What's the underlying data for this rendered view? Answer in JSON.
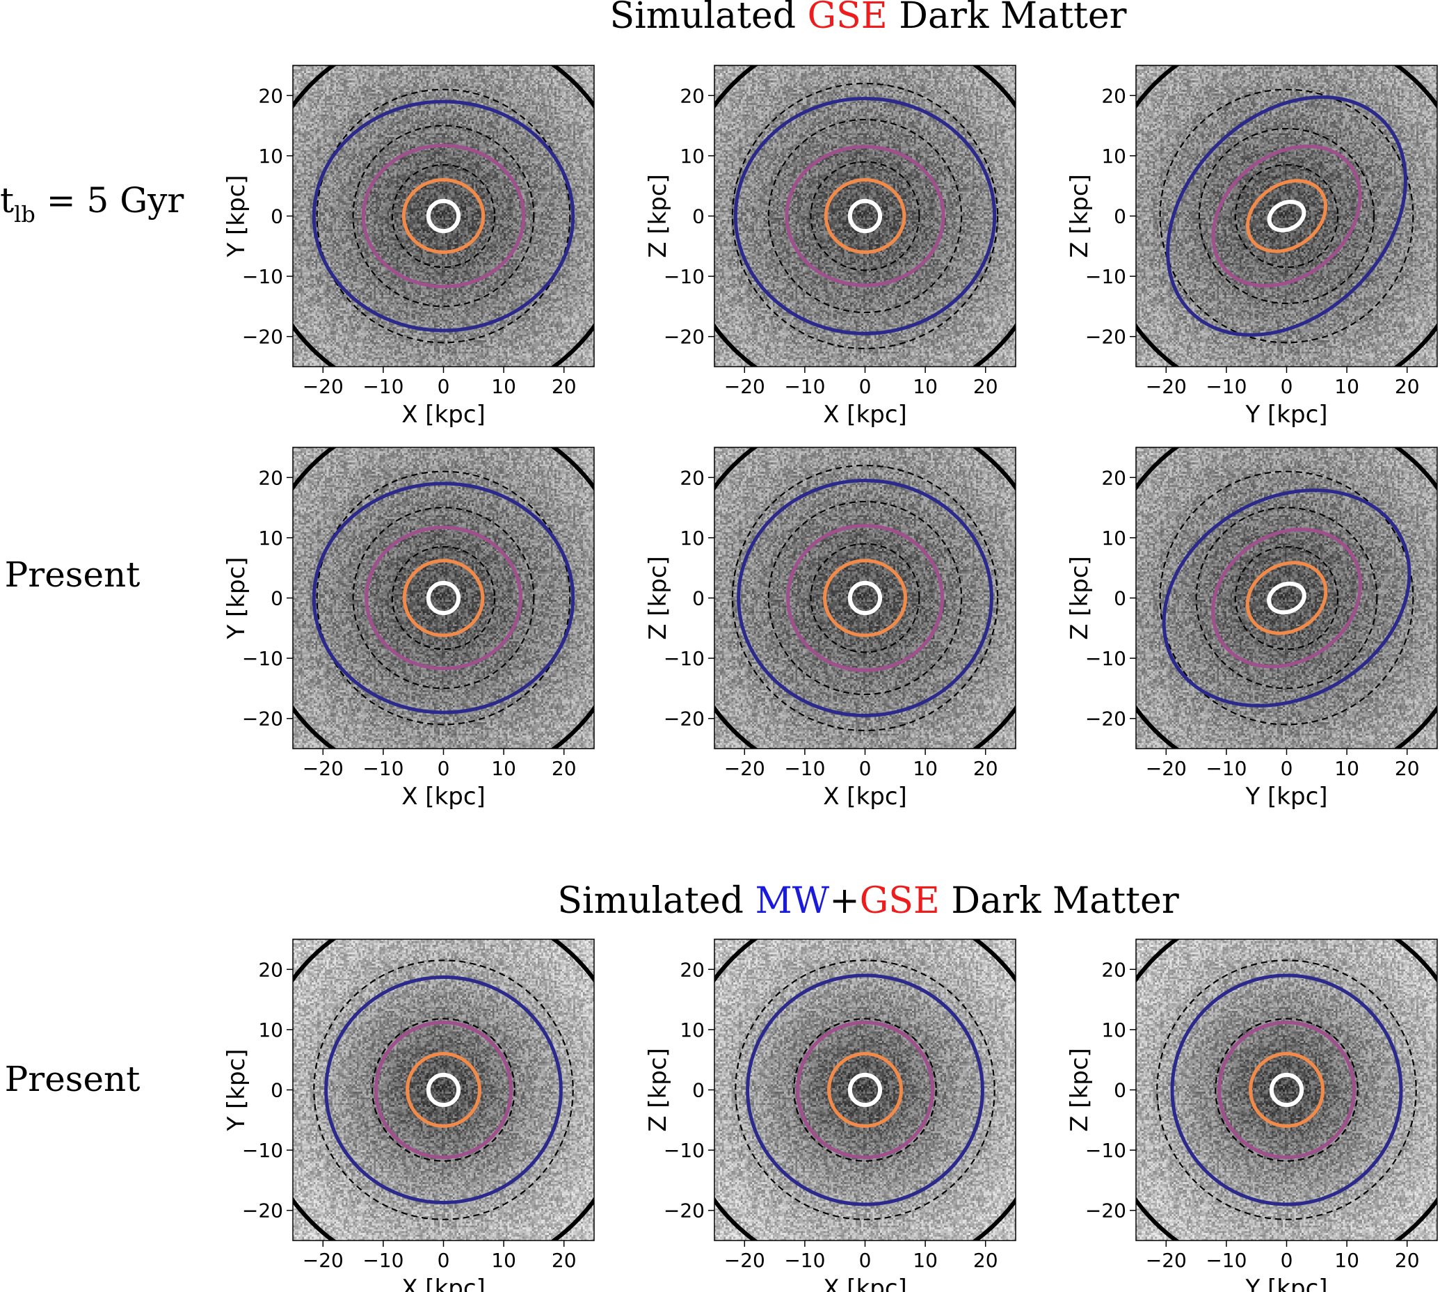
{
  "figure": {
    "top_title": {
      "prefix": "Simulated ",
      "highlight": "GSE",
      "suffix": " Dark Matter"
    },
    "bottom_title": {
      "prefix": "Simulated ",
      "highlight1": "MW",
      "plus": "+",
      "highlight2": "GSE",
      "suffix": " Dark Matter"
    },
    "colors": {
      "gse": "#ee1c1c",
      "mw": "#1a1adc",
      "blue": "#2b2a8c",
      "purple": "#a0508c",
      "orange": "#f28a4a",
      "white": "#ffffff",
      "dashed": "#000000"
    },
    "row_labels": [
      {
        "t": "t",
        "sub": "lb",
        "rest": " = 5 Gyr"
      },
      {
        "text": "Present"
      },
      {
        "text": "Present"
      }
    ]
  },
  "chart_data": [
    {
      "type": "heatmap",
      "panel": "gse-5gyr-xy",
      "xlabel": "X [kpc]",
      "ylabel": "Y [kpc]",
      "xlim": [
        -25,
        25
      ],
      "ylim": [
        -25,
        25
      ],
      "xticks": [
        -20,
        -10,
        0,
        10,
        20
      ],
      "yticks": [
        -20,
        -10,
        0,
        10,
        20
      ],
      "ellipses": [
        {
          "name": "white",
          "a": 2.5,
          "b": 2.5,
          "angle": 0
        },
        {
          "name": "orange",
          "a": 6.6,
          "b": 6.0,
          "angle": 0
        },
        {
          "name": "purple",
          "a": 13.3,
          "b": 11.7,
          "angle": 0
        },
        {
          "name": "blue",
          "a": 21.5,
          "b": 19.0,
          "angle": 0
        }
      ],
      "dashed_circles": [
        8.5,
        15.0,
        21.0
      ],
      "thick_circle": 31.0
    },
    {
      "type": "heatmap",
      "panel": "gse-5gyr-xz",
      "xlabel": "X [kpc]",
      "ylabel": "Z [kpc]",
      "xlim": [
        -25,
        25
      ],
      "ylim": [
        -25,
        25
      ],
      "xticks": [
        -20,
        -10,
        0,
        10,
        20
      ],
      "yticks": [
        -20,
        -10,
        0,
        10,
        20
      ],
      "ellipses": [
        {
          "name": "white",
          "a": 2.5,
          "b": 2.5,
          "angle": 0
        },
        {
          "name": "orange",
          "a": 6.5,
          "b": 6.0,
          "angle": 0
        },
        {
          "name": "purple",
          "a": 13.0,
          "b": 11.5,
          "angle": 0
        },
        {
          "name": "blue",
          "a": 21.5,
          "b": 19.5,
          "angle": 0
        }
      ],
      "dashed_circles": [
        9.0,
        16.0,
        22.0
      ],
      "thick_circle": 31.0
    },
    {
      "type": "heatmap",
      "panel": "gse-5gyr-yz",
      "xlabel": "Y [kpc]",
      "ylabel": "Z [kpc]",
      "xlim": [
        -25,
        25
      ],
      "ylim": [
        -25,
        25
      ],
      "xticks": [
        -20,
        -10,
        0,
        10,
        20
      ],
      "yticks": [
        -20,
        -10,
        0,
        10,
        20
      ],
      "ellipses": [
        {
          "name": "white",
          "a": 3.0,
          "b": 2.2,
          "angle": -25
        },
        {
          "name": "orange",
          "a": 7.0,
          "b": 5.2,
          "angle": -35
        },
        {
          "name": "purple",
          "a": 13.5,
          "b": 10.0,
          "angle": -40
        },
        {
          "name": "blue",
          "a": 22.5,
          "b": 16.5,
          "angle": -45
        }
      ],
      "dashed_circles": [
        8.5,
        14.5,
        21.0
      ],
      "thick_circle": 31.0
    },
    {
      "type": "heatmap",
      "panel": "gse-present-xy",
      "xlabel": "X [kpc]",
      "ylabel": "Y [kpc]",
      "xlim": [
        -25,
        25
      ],
      "ylim": [
        -25,
        25
      ],
      "xticks": [
        -20,
        -10,
        0,
        10,
        20
      ],
      "yticks": [
        -20,
        -10,
        0,
        10,
        20
      ],
      "ellipses": [
        {
          "name": "white",
          "a": 2.5,
          "b": 2.5,
          "angle": 0
        },
        {
          "name": "orange",
          "a": 6.5,
          "b": 6.2,
          "angle": 0
        },
        {
          "name": "purple",
          "a": 12.8,
          "b": 11.7,
          "angle": 0
        },
        {
          "name": "blue",
          "a": 21.5,
          "b": 19.0,
          "angle": 0
        }
      ],
      "dashed_circles": [
        8.5,
        15.0,
        21.0
      ],
      "thick_circle": 31.0
    },
    {
      "type": "heatmap",
      "panel": "gse-present-xz",
      "xlabel": "X [kpc]",
      "ylabel": "Z [kpc]",
      "xlim": [
        -25,
        25
      ],
      "ylim": [
        -25,
        25
      ],
      "xticks": [
        -20,
        -10,
        0,
        10,
        20
      ],
      "yticks": [
        -20,
        -10,
        0,
        10,
        20
      ],
      "ellipses": [
        {
          "name": "white",
          "a": 2.5,
          "b": 2.5,
          "angle": 0
        },
        {
          "name": "orange",
          "a": 6.7,
          "b": 6.2,
          "angle": 0
        },
        {
          "name": "purple",
          "a": 12.8,
          "b": 12.0,
          "angle": 0
        },
        {
          "name": "blue",
          "a": 21.0,
          "b": 19.5,
          "angle": 0
        }
      ],
      "dashed_circles": [
        9.0,
        16.0,
        22.0
      ],
      "thick_circle": 31.0
    },
    {
      "type": "heatmap",
      "panel": "gse-present-yz",
      "xlabel": "Y [kpc]",
      "ylabel": "Z [kpc]",
      "xlim": [
        -25,
        25
      ],
      "ylim": [
        -25,
        25
      ],
      "xticks": [
        -20,
        -10,
        0,
        10,
        20
      ],
      "yticks": [
        -20,
        -10,
        0,
        10,
        20
      ],
      "ellipses": [
        {
          "name": "white",
          "a": 3.0,
          "b": 2.3,
          "angle": -20
        },
        {
          "name": "orange",
          "a": 6.8,
          "b": 5.5,
          "angle": -30
        },
        {
          "name": "purple",
          "a": 13.0,
          "b": 10.5,
          "angle": -35
        },
        {
          "name": "blue",
          "a": 21.5,
          "b": 16.5,
          "angle": -30
        }
      ],
      "dashed_circles": [
        8.5,
        15.0,
        21.0
      ],
      "thick_circle": 31.0
    },
    {
      "type": "heatmap",
      "panel": "mwgse-present-xy",
      "xlabel": "X [kpc]",
      "ylabel": "Y [kpc]",
      "xlim": [
        -25,
        25
      ],
      "ylim": [
        -25,
        25
      ],
      "xticks": [
        -20,
        -10,
        0,
        10,
        20
      ],
      "yticks": [
        -20,
        -10,
        0,
        10,
        20
      ],
      "ellipses": [
        {
          "name": "white",
          "a": 2.5,
          "b": 2.5,
          "angle": 0
        },
        {
          "name": "orange",
          "a": 6.0,
          "b": 6.0,
          "angle": 0
        },
        {
          "name": "purple",
          "a": 11.2,
          "b": 11.2,
          "angle": 0
        },
        {
          "name": "blue",
          "a": 19.5,
          "b": 18.7,
          "angle": 0
        }
      ],
      "dashed_circles": [
        11.8,
        21.5
      ],
      "thick_circle": 31.0
    },
    {
      "type": "heatmap",
      "panel": "mwgse-present-xz",
      "xlabel": "X [kpc]",
      "ylabel": "Z [kpc]",
      "xlim": [
        -25,
        25
      ],
      "ylim": [
        -25,
        25
      ],
      "xticks": [
        -20,
        -10,
        0,
        10,
        20
      ],
      "yticks": [
        -20,
        -10,
        0,
        10,
        20
      ],
      "ellipses": [
        {
          "name": "white",
          "a": 2.5,
          "b": 2.5,
          "angle": 0
        },
        {
          "name": "orange",
          "a": 6.0,
          "b": 6.0,
          "angle": 0
        },
        {
          "name": "purple",
          "a": 11.2,
          "b": 11.2,
          "angle": 0
        },
        {
          "name": "blue",
          "a": 19.5,
          "b": 19.0,
          "angle": 0
        }
      ],
      "dashed_circles": [
        11.8,
        21.5
      ],
      "thick_circle": 31.0
    },
    {
      "type": "heatmap",
      "panel": "mwgse-present-yz",
      "xlabel": "Y [kpc]",
      "ylabel": "Z [kpc]",
      "xlim": [
        -25,
        25
      ],
      "ylim": [
        -25,
        25
      ],
      "xticks": [
        -20,
        -10,
        0,
        10,
        20
      ],
      "yticks": [
        -20,
        -10,
        0,
        10,
        20
      ],
      "ellipses": [
        {
          "name": "white",
          "a": 2.5,
          "b": 2.5,
          "angle": 0
        },
        {
          "name": "orange",
          "a": 6.0,
          "b": 6.0,
          "angle": 0
        },
        {
          "name": "purple",
          "a": 11.2,
          "b": 11.2,
          "angle": 0
        },
        {
          "name": "blue",
          "a": 19.0,
          "b": 19.0,
          "angle": 0
        }
      ],
      "dashed_circles": [
        11.8,
        21.5
      ],
      "thick_circle": 31.0
    }
  ]
}
